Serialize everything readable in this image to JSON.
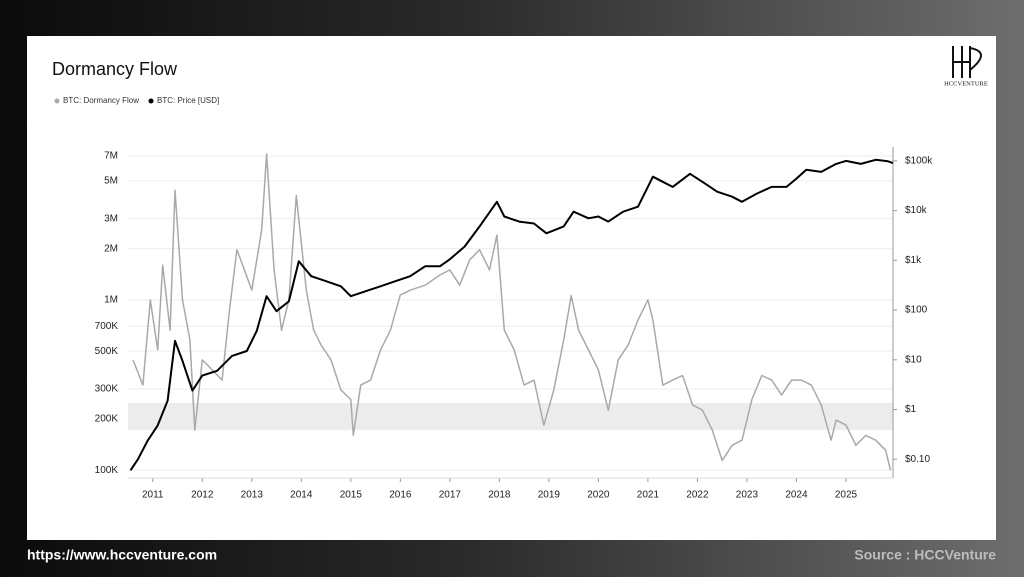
{
  "chart_data": {
    "type": "line",
    "title": "Dormancy Flow",
    "logo": "HCCVENTURE",
    "footer_left": "https://www.hccventure.com",
    "footer_right": "Source : HCCVenture",
    "xlim": [
      2010.5,
      2025.95
    ],
    "xticks": [
      2011,
      2012,
      2013,
      2014,
      2015,
      2016,
      2017,
      2018,
      2019,
      2020,
      2021,
      2022,
      2023,
      2024,
      2025
    ],
    "ylim": [
      90000,
      7900000
    ],
    "yticks": [
      {
        "value": 100000,
        "label": "100K"
      },
      {
        "value": 200000,
        "label": "200K"
      },
      {
        "value": 300000,
        "label": "300K"
      },
      {
        "value": 500000,
        "label": "500K"
      },
      {
        "value": 700000,
        "label": "700K"
      },
      {
        "value": 1000000,
        "label": "1M"
      },
      {
        "value": 2000000,
        "label": "2M"
      },
      {
        "value": 3000000,
        "label": "3M"
      },
      {
        "value": 5000000,
        "label": "5M"
      },
      {
        "value": 7000000,
        "label": "7M"
      }
    ],
    "y2lim": [
      0.042,
      190000
    ],
    "y2ticks": [
      {
        "value": 0.1,
        "label": "$0.10"
      },
      {
        "value": 1,
        "label": "$1"
      },
      {
        "value": 10,
        "label": "$10"
      },
      {
        "value": 100,
        "label": "$100"
      },
      {
        "value": 1000,
        "label": "$1k"
      },
      {
        "value": 10000,
        "label": "$10k"
      },
      {
        "value": 100000,
        "label": "$100k"
      }
    ],
    "log_scale": true,
    "grid": true,
    "highlight_band": [
      172000,
      248000
    ],
    "series": [
      {
        "name": "BTC: Dormancy Flow",
        "color": "#a9a9a9",
        "x": [
          2010.6,
          2010.8,
          2010.95,
          2011.1,
          2011.2,
          2011.35,
          2011.45,
          2011.6,
          2011.75,
          2011.85,
          2012.0,
          2012.2,
          2012.4,
          2012.55,
          2012.7,
          2012.85,
          2013.0,
          2013.2,
          2013.3,
          2013.45,
          2013.6,
          2013.75,
          2013.9,
          2014.1,
          2014.25,
          2014.4,
          2014.6,
          2014.8,
          2015.0,
          2015.05,
          2015.2,
          2015.4,
          2015.6,
          2015.8,
          2016.0,
          2016.2,
          2016.5,
          2016.8,
          2017.0,
          2017.2,
          2017.4,
          2017.6,
          2017.8,
          2017.95,
          2018.1,
          2018.3,
          2018.5,
          2018.7,
          2018.9,
          2019.1,
          2019.3,
          2019.45,
          2019.6,
          2019.8,
          2020.0,
          2020.2,
          2020.4,
          2020.6,
          2020.8,
          2021.0,
          2021.1,
          2021.3,
          2021.5,
          2021.7,
          2021.9,
          2022.1,
          2022.3,
          2022.5,
          2022.7,
          2022.9,
          2023.1,
          2023.3,
          2023.5,
          2023.7,
          2023.9,
          2024.1,
          2024.3,
          2024.5,
          2024.7,
          2024.8,
          2025.0,
          2025.2,
          2025.4,
          2025.6,
          2025.8,
          2025.9
        ],
        "values": [
          444000,
          316000,
          1000000,
          508000,
          1600000,
          664000,
          4400000,
          1000000,
          582000,
          172000,
          444000,
          388000,
          338000,
          873000,
          1970000,
          1500000,
          1140000,
          2580000,
          7200000,
          1500000,
          664000,
          1000000,
          4100000,
          1140000,
          664000,
          543000,
          444000,
          296000,
          260000,
          160000,
          316000,
          338000,
          508000,
          664000,
          1070000,
          1140000,
          1220000,
          1400000,
          1500000,
          1220000,
          1720000,
          1970000,
          1500000,
          2400000,
          664000,
          508000,
          316000,
          338000,
          184000,
          296000,
          582000,
          1060000,
          664000,
          508000,
          388000,
          225000,
          444000,
          543000,
          762000,
          1000000,
          762000,
          316000,
          338000,
          360000,
          242000,
          225000,
          172000,
          114000,
          140000,
          150000,
          260000,
          360000,
          338000,
          276000,
          338000,
          338000,
          316000,
          242000,
          150000,
          197000,
          184000,
          140000,
          160000,
          150000,
          131000,
          100000
        ]
      },
      {
        "name": "BTC: Price [USD]",
        "color": "#000000",
        "axis": "y2",
        "x": [
          2010.55,
          2010.7,
          2010.9,
          2011.1,
          2011.3,
          2011.45,
          2011.6,
          2011.8,
          2012.0,
          2012.3,
          2012.6,
          2012.9,
          2013.1,
          2013.3,
          2013.5,
          2013.75,
          2013.95,
          2014.2,
          2014.5,
          2014.8,
          2015.0,
          2015.3,
          2015.6,
          2015.9,
          2016.2,
          2016.5,
          2016.8,
          2017.0,
          2017.3,
          2017.6,
          2017.95,
          2018.1,
          2018.4,
          2018.7,
          2018.95,
          2019.3,
          2019.5,
          2019.8,
          2020.0,
          2020.2,
          2020.5,
          2020.8,
          2021.1,
          2021.3,
          2021.5,
          2021.85,
          2022.1,
          2022.4,
          2022.7,
          2022.9,
          2023.2,
          2023.5,
          2023.8,
          2024.0,
          2024.2,
          2024.5,
          2024.8,
          2025.0,
          2025.3,
          2025.6,
          2025.85,
          2025.95
        ],
        "values": [
          0.06,
          0.1,
          0.24,
          0.48,
          1.5,
          24,
          9.5,
          2.4,
          4.8,
          6,
          12,
          15,
          38,
          190,
          95,
          150,
          955,
          480,
          380,
          300,
          190,
          240,
          300,
          380,
          480,
          760,
          760,
          1050,
          1900,
          4800,
          15000,
          7600,
          6000,
          5500,
          3500,
          4800,
          9500,
          7000,
          7600,
          6000,
          9500,
          12000,
          48000,
          38000,
          30000,
          55000,
          38000,
          24000,
          19000,
          15000,
          22000,
          30000,
          30000,
          44000,
          66000,
          60000,
          87000,
          100000,
          87000,
          105000,
          98000,
          90000
        ]
      }
    ]
  }
}
